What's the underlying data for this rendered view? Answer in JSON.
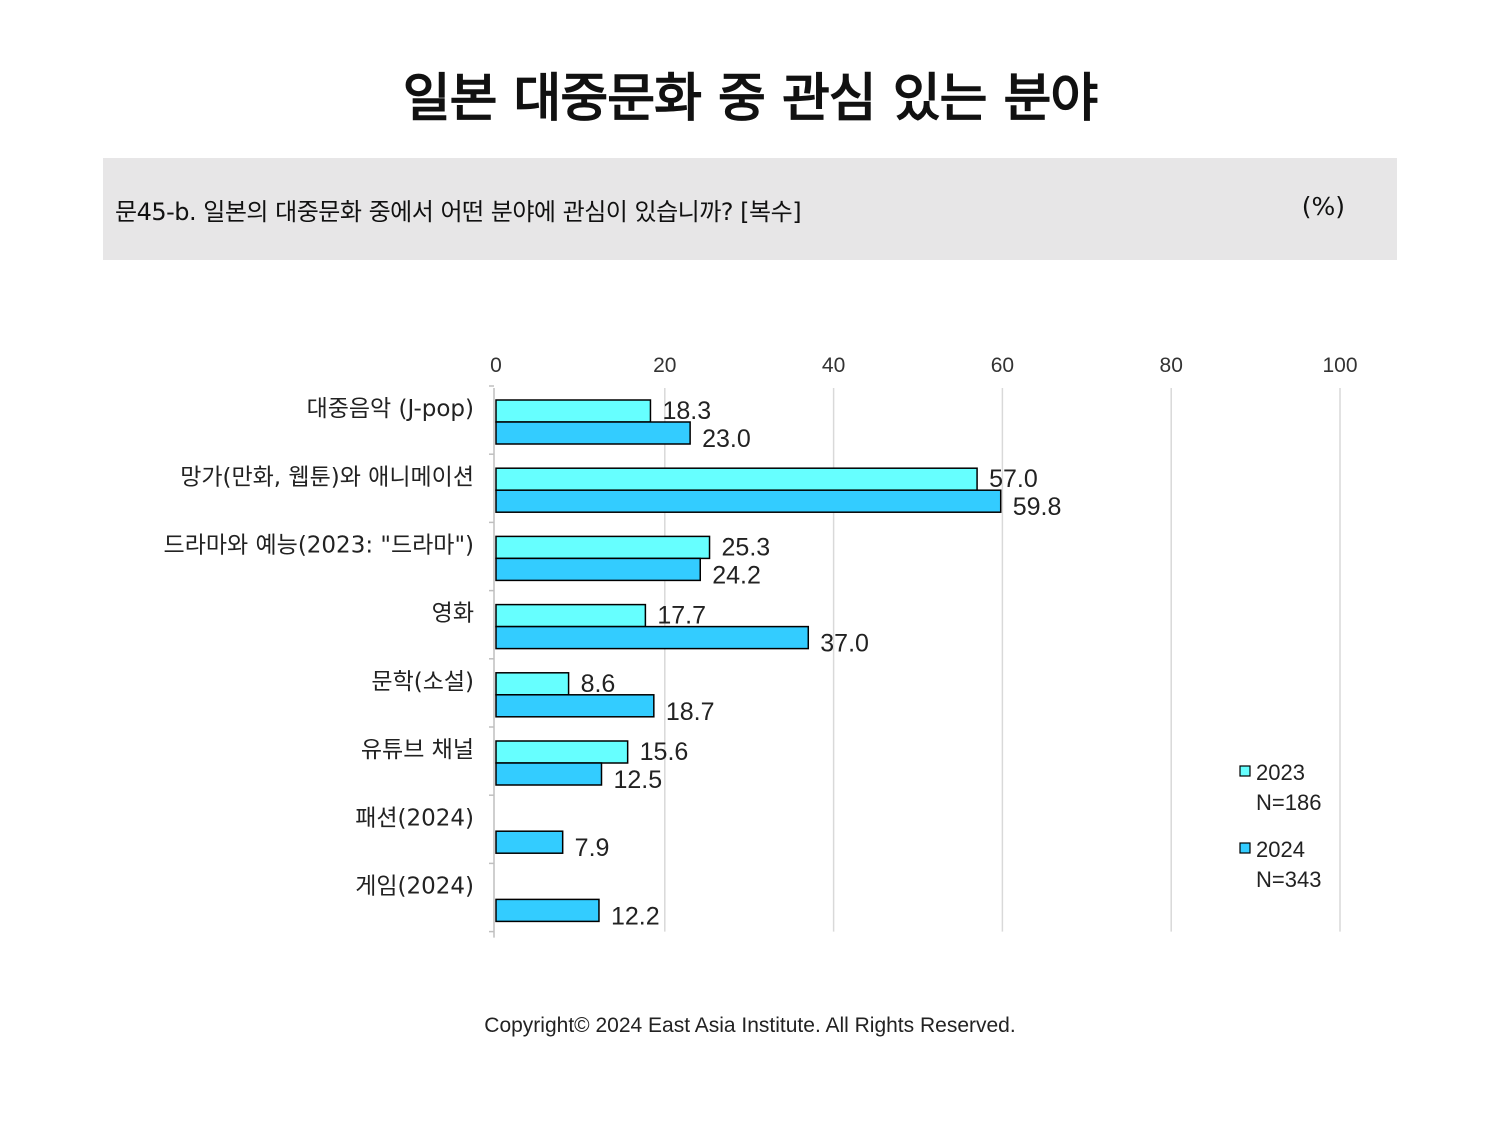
{
  "title": "일본 대중문화 중 관심 있는 분야",
  "question": "문45-b. 일본의 대중문화 중에서 어떤 분야에 관심이 있습니까? [복수]",
  "unit": "(%)",
  "copyright": "Copyright© 2024 East Asia Institute. All Rights Reserved.",
  "chart_data": {
    "type": "bar",
    "orientation": "horizontal",
    "categories": [
      "대중음악 (J-pop)",
      "망가(만화, 웹툰)와 애니메이션",
      "드라마와 예능(2023: \"드라마\")",
      "영화",
      "문학(소설)",
      "유튜브 채널",
      "패션(2024)",
      "게임(2024)"
    ],
    "series": [
      {
        "name": "2023",
        "sample": "N=186",
        "color": "#66ffff",
        "values": [
          18.3,
          57.0,
          25.3,
          17.7,
          8.6,
          15.6,
          null,
          null
        ]
      },
      {
        "name": "2024",
        "sample": "N=343",
        "color": "#33ccff",
        "values": [
          23.0,
          59.8,
          24.2,
          37.0,
          18.7,
          12.5,
          7.9,
          12.2
        ]
      }
    ],
    "value_labels": [
      [
        "18.3",
        "57.0",
        "25.3",
        "17.7",
        "8.6",
        "15.6",
        "",
        ""
      ],
      [
        "23.0",
        "59.8",
        "24.2",
        "37.0",
        "18.7",
        "12.5",
        "7.9",
        "12.2"
      ]
    ],
    "xlim": [
      0,
      100
    ],
    "xticks": [
      0,
      20,
      40,
      60,
      80,
      100
    ],
    "xtick_labels": [
      "0",
      "20",
      "40",
      "60",
      "80",
      "100"
    ],
    "x_axis_position": "top",
    "grid": true,
    "legend_position": "bottom-right"
  }
}
